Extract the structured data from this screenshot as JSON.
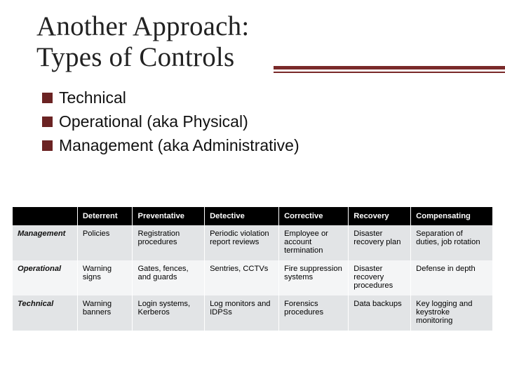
{
  "slide": {
    "title_line1": "Another Approach:",
    "title_line2": "Types of Controls",
    "accent_color": "#7a2a2a",
    "bullet_color": "#6b2323",
    "bullets": [
      "Technical",
      "Operational (aka Physical)",
      "Management (aka Administrative)"
    ]
  },
  "table": {
    "type": "table",
    "header_bg": "#000000",
    "header_fg": "#ffffff",
    "row_bg_even": "#e2e4e6",
    "row_bg_odd": "#f4f5f6",
    "fontsize": 11.2,
    "columns": [
      "",
      "Deterrent",
      "Preventative",
      "Detective",
      "Corrective",
      "Recovery",
      "Compensating"
    ],
    "rows": [
      {
        "head": "Management",
        "cells": [
          "Policies",
          "Registration procedures",
          "Periodic violation report reviews",
          "Employee or account termination",
          "Disaster recovery plan",
          "Separation of duties, job rotation"
        ]
      },
      {
        "head": "Operational",
        "cells": [
          "Warning signs",
          "Gates, fences, and guards",
          "Sentries, CCTVs",
          "Fire suppression systems",
          "Disaster recovery procedures",
          "Defense in depth"
        ]
      },
      {
        "head": "Technical",
        "cells": [
          "Warning banners",
          "Login systems, Kerberos",
          "Log monitors and IDPSs",
          "Forensics procedures",
          "Data backups",
          "Key logging and keystroke monitoring"
        ]
      }
    ]
  }
}
